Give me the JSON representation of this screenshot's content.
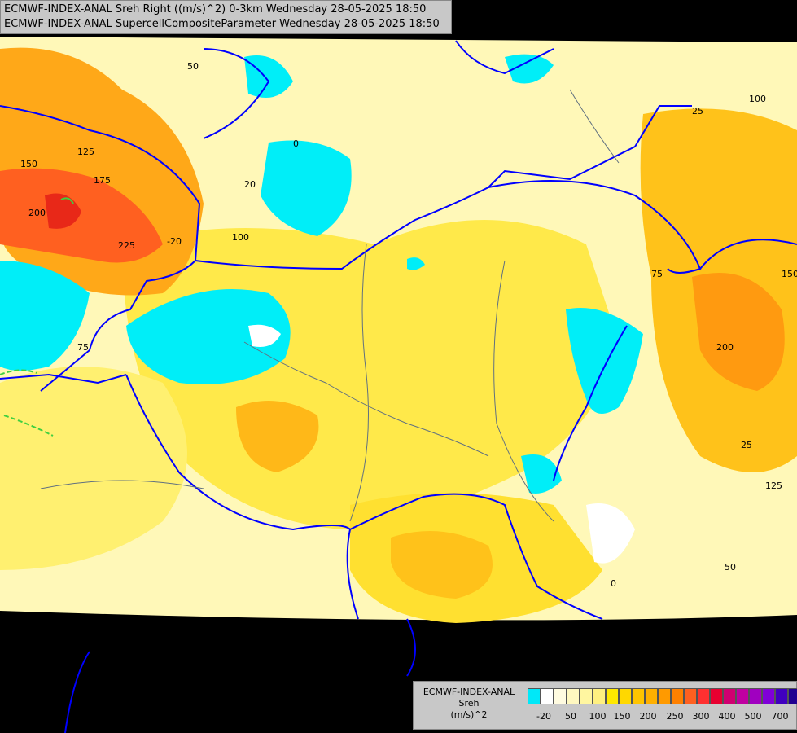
{
  "title": {
    "line1": "ECMWF-INDEX-ANAL Sreh Right ((m/s)^2) 0-3km Wednesday 28-05-2025 18:50",
    "line2": "ECMWF-INDEX-ANAL SupercellCompositeParameter Wednesday 28-05-2025 18:50"
  },
  "legend": {
    "model": "ECMWF-INDEX-ANAL",
    "parameter": "Sreh",
    "unit": "(m/s)^2",
    "tick_labels": [
      "-20",
      "50",
      "100",
      "150",
      "200",
      "250",
      "300",
      "400",
      "500",
      "700"
    ],
    "colors": [
      "#00e8f8",
      "#ffffff",
      "#fffbe0",
      "#fff8c0",
      "#fff6a0",
      "#fff080",
      "#ffe800",
      "#ffd800",
      "#ffc400",
      "#ffb000",
      "#ff9a00",
      "#ff8000",
      "#ff6020",
      "#ff3030",
      "#e80030",
      "#d00070",
      "#c000a0",
      "#a000c0",
      "#8000d8",
      "#4000c0",
      "#200090"
    ]
  },
  "contour_labels": [
    "125",
    "150",
    "175",
    "200",
    "225",
    "100",
    "75",
    "50",
    "25",
    "0",
    "20",
    "-20",
    "200",
    "150",
    "125",
    "100",
    "75",
    "50",
    "25",
    "0"
  ],
  "colors": {
    "background": "#000000",
    "border": "#0000ff",
    "river": "#607080",
    "cyan": "#00eef8"
  }
}
